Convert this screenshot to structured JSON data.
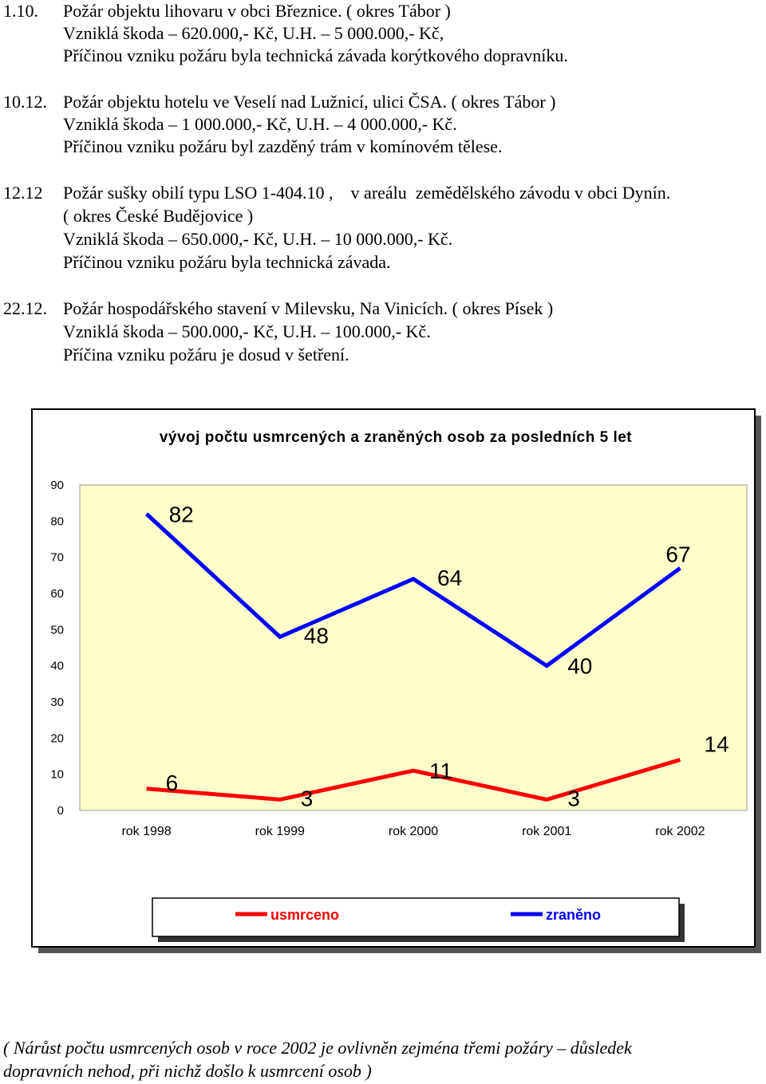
{
  "entries": [
    {
      "date": "1.10.",
      "lines": [
        "Požár objektu lihovaru v obci Březnice. ( okres Tábor )",
        "Vzniklá škoda – 620.000,- Kč, U.H. – 5 000.000,- Kč,",
        "Příčinou vzniku požáru byla technická závada korýtkového dopravníku."
      ]
    },
    {
      "date": "10.12.",
      "lines": [
        "Požár objektu hotelu ve Veselí nad Lužnicí, ulici ČSA. ( okres Tábor )",
        "Vzniklá škoda – 1 000.000,- Kč, U.H. – 4 000.000,- Kč.",
        "Příčinou vzniku požáru byl zazděný trám v komínovém tělese."
      ]
    },
    {
      "date": "12.12",
      "lines": [
        "Požár sušky obilí typu LSO 1-404.10 ,    v areálu  zemědělského závodu v obci Dynín.",
        "( okres České Budějovice )",
        "Vzniklá škoda – 650.000,- Kč, U.H. – 10 000.000,- Kč.",
        "Příčinou vzniku požáru byla technická závada."
      ]
    },
    {
      "date": "22.12.",
      "lines": [
        "Požár hospodářského stavení v Milevsku, Na Vinicích. ( okres Písek )",
        "Vzniklá škoda – 500.000,- Kč, U.H. – 100.000,- Kč.",
        "Příčina vzniku požáru je dosud v šetření."
      ]
    }
  ],
  "chart_data": {
    "type": "line",
    "title": "vývoj počtu usmrcených a zraněných osob za posledních 5 let",
    "categories": [
      "rok 1998",
      "rok 1999",
      "rok 2000",
      "rok 2001",
      "rok 2002"
    ],
    "ylim": [
      0,
      90
    ],
    "yticks": [
      "0",
      "10",
      "20",
      "30",
      "40",
      "50",
      "60",
      "70",
      "80",
      "90"
    ],
    "series": [
      {
        "name": "usmrceno",
        "color": "#ff0000",
        "values": [
          6,
          3,
          11,
          3,
          14
        ]
      },
      {
        "name": "zraněno",
        "color": "#0000ff",
        "values": [
          82,
          48,
          64,
          40,
          67
        ]
      }
    ],
    "legend": "bottom",
    "grid": false
  },
  "note": {
    "lines": [
      "( Nárůst počtu usmrcených osob v roce 2002 je ovlivněn zejména třemi požáry – důsledek",
      "dopravních nehod, při nichž došlo k usmrcení osob )"
    ]
  }
}
